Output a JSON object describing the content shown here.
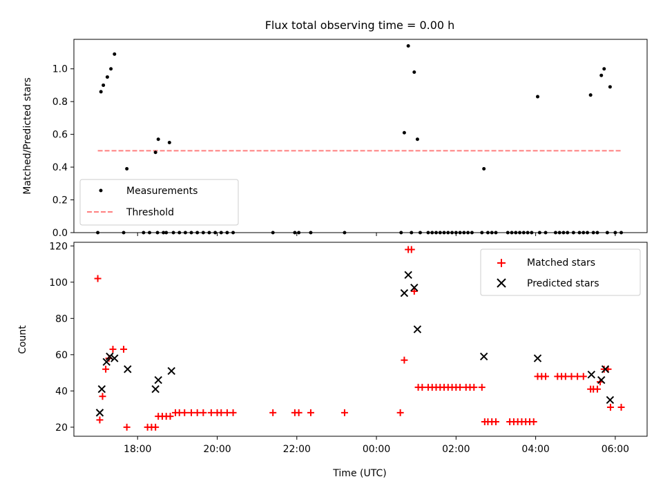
{
  "chart_data": [
    {
      "type": "scatter",
      "title": "Flux total observing time = 0.00 h",
      "xlabel": "",
      "ylabel": "Matched/Predicted stars",
      "x_unit": "hours since 00:00 UTC (negative = previous day)",
      "xlim": [
        -7.6,
        6.8
      ],
      "ylim": [
        0.0,
        1.18
      ],
      "yticks": [
        0.0,
        0.2,
        0.4,
        0.6,
        0.8,
        1.0
      ],
      "ytick_labels": [
        "0.0",
        "0.2",
        "0.4",
        "0.6",
        "0.8",
        "1.0"
      ],
      "legend": {
        "position": "lower-left",
        "items": [
          "Measurements",
          "Threshold"
        ]
      },
      "series": [
        {
          "name": "Measurements",
          "color": "#000000",
          "marker": "dot",
          "points": [
            [
              -7.0,
              0.0
            ],
            [
              -6.92,
              0.86
            ],
            [
              -6.86,
              0.9
            ],
            [
              -6.76,
              0.95
            ],
            [
              -6.67,
              1.0
            ],
            [
              -6.58,
              1.09
            ],
            [
              -6.35,
              0.0
            ],
            [
              -6.27,
              0.39
            ],
            [
              -5.55,
              0.49
            ],
            [
              -5.48,
              0.57
            ],
            [
              -5.2,
              0.55
            ],
            [
              -5.85,
              0.0
            ],
            [
              -5.7,
              0.0
            ],
            [
              -5.5,
              0.0
            ],
            [
              -5.35,
              0.0
            ],
            [
              -5.28,
              0.0
            ],
            [
              -5.1,
              0.0
            ],
            [
              -4.95,
              0.0
            ],
            [
              -4.8,
              0.0
            ],
            [
              -4.65,
              0.0
            ],
            [
              -4.5,
              0.0
            ],
            [
              -4.35,
              0.0
            ],
            [
              -4.2,
              0.0
            ],
            [
              -4.05,
              0.0
            ],
            [
              -3.9,
              0.0
            ],
            [
              -3.75,
              0.0
            ],
            [
              -3.6,
              0.0
            ],
            [
              -2.6,
              0.0
            ],
            [
              -2.05,
              0.0
            ],
            [
              -1.95,
              0.0
            ],
            [
              -1.65,
              0.0
            ],
            [
              -0.8,
              0.0
            ],
            [
              0.62,
              0.0
            ],
            [
              0.7,
              0.61
            ],
            [
              0.8,
              1.14
            ],
            [
              0.88,
              0.0
            ],
            [
              0.95,
              0.98
            ],
            [
              1.03,
              0.57
            ],
            [
              1.1,
              0.0
            ],
            [
              1.3,
              0.0
            ],
            [
              1.4,
              0.0
            ],
            [
              1.5,
              0.0
            ],
            [
              1.6,
              0.0
            ],
            [
              1.7,
              0.0
            ],
            [
              1.8,
              0.0
            ],
            [
              1.9,
              0.0
            ],
            [
              2.0,
              0.0
            ],
            [
              2.1,
              0.0
            ],
            [
              2.2,
              0.0
            ],
            [
              2.3,
              0.0
            ],
            [
              2.4,
              0.0
            ],
            [
              2.7,
              0.39
            ],
            [
              2.65,
              0.0
            ],
            [
              2.8,
              0.0
            ],
            [
              2.9,
              0.0
            ],
            [
              3.0,
              0.0
            ],
            [
              3.3,
              0.0
            ],
            [
              3.4,
              0.0
            ],
            [
              3.5,
              0.0
            ],
            [
              3.6,
              0.0
            ],
            [
              3.7,
              0.0
            ],
            [
              3.8,
              0.0
            ],
            [
              3.9,
              0.0
            ],
            [
              4.05,
              0.83
            ],
            [
              4.1,
              0.0
            ],
            [
              4.25,
              0.0
            ],
            [
              4.5,
              0.0
            ],
            [
              4.6,
              0.0
            ],
            [
              4.7,
              0.0
            ],
            [
              4.8,
              0.0
            ],
            [
              4.95,
              0.0
            ],
            [
              5.1,
              0.0
            ],
            [
              5.2,
              0.0
            ],
            [
              5.3,
              0.0
            ],
            [
              5.38,
              0.84
            ],
            [
              5.45,
              0.0
            ],
            [
              5.55,
              0.0
            ],
            [
              5.65,
              0.96
            ],
            [
              5.72,
              1.0
            ],
            [
              5.8,
              0.0
            ],
            [
              5.87,
              0.89
            ],
            [
              6.0,
              0.0
            ],
            [
              6.15,
              0.0
            ]
          ]
        },
        {
          "name": "Threshold",
          "color": "#ff7f7f",
          "style": "dashed",
          "x": [
            -7.0,
            6.15
          ],
          "y": [
            0.5,
            0.5
          ]
        }
      ]
    },
    {
      "type": "scatter",
      "title": "",
      "xlabel": "Time (UTC)",
      "ylabel": "Count",
      "x_unit": "hours since 00:00 UTC (negative = previous day)",
      "xlim": [
        -7.6,
        6.8
      ],
      "ylim": [
        15,
        122
      ],
      "yticks": [
        20,
        40,
        60,
        80,
        100,
        120
      ],
      "ytick_labels": [
        "20",
        "40",
        "60",
        "80",
        "100",
        "120"
      ],
      "xticks": [
        -6,
        -4,
        -2,
        0,
        2,
        4,
        6
      ],
      "xtick_labels": [
        "18:00",
        "20:00",
        "22:00",
        "00:00",
        "02:00",
        "04:00",
        "06:00"
      ],
      "legend": {
        "position": "top-right",
        "items": [
          "Matched stars",
          "Predicted stars"
        ]
      },
      "series": [
        {
          "name": "Matched stars",
          "color": "#ff0000",
          "marker": "plus",
          "points": [
            [
              -7.0,
              102
            ],
            [
              -6.95,
              24
            ],
            [
              -6.88,
              37
            ],
            [
              -6.8,
              52
            ],
            [
              -6.72,
              58
            ],
            [
              -6.62,
              63
            ],
            [
              -6.35,
              63
            ],
            [
              -6.27,
              20
            ],
            [
              -5.75,
              20
            ],
            [
              -5.65,
              20
            ],
            [
              -5.55,
              20
            ],
            [
              -5.48,
              26
            ],
            [
              -5.38,
              26
            ],
            [
              -5.28,
              26
            ],
            [
              -5.18,
              26
            ],
            [
              -5.05,
              28
            ],
            [
              -4.95,
              28
            ],
            [
              -4.82,
              28
            ],
            [
              -4.65,
              28
            ],
            [
              -4.5,
              28
            ],
            [
              -4.35,
              28
            ],
            [
              -4.15,
              28
            ],
            [
              -4.0,
              28
            ],
            [
              -3.9,
              28
            ],
            [
              -3.75,
              28
            ],
            [
              -3.6,
              28
            ],
            [
              -2.6,
              28
            ],
            [
              -2.05,
              28
            ],
            [
              -1.95,
              28
            ],
            [
              -1.65,
              28
            ],
            [
              -0.8,
              28
            ],
            [
              0.6,
              28
            ],
            [
              0.7,
              57
            ],
            [
              0.8,
              118
            ],
            [
              0.88,
              118
            ],
            [
              0.95,
              95
            ],
            [
              1.05,
              42
            ],
            [
              1.15,
              42
            ],
            [
              1.3,
              42
            ],
            [
              1.4,
              42
            ],
            [
              1.5,
              42
            ],
            [
              1.6,
              42
            ],
            [
              1.7,
              42
            ],
            [
              1.8,
              42
            ],
            [
              1.9,
              42
            ],
            [
              2.0,
              42
            ],
            [
              2.1,
              42
            ],
            [
              2.25,
              42
            ],
            [
              2.35,
              42
            ],
            [
              2.45,
              42
            ],
            [
              2.65,
              42
            ],
            [
              2.72,
              23
            ],
            [
              2.8,
              23
            ],
            [
              2.9,
              23
            ],
            [
              3.0,
              23
            ],
            [
              3.35,
              23
            ],
            [
              3.45,
              23
            ],
            [
              3.55,
              23
            ],
            [
              3.65,
              23
            ],
            [
              3.75,
              23
            ],
            [
              3.85,
              23
            ],
            [
              3.95,
              23
            ],
            [
              4.05,
              48
            ],
            [
              4.15,
              48
            ],
            [
              4.25,
              48
            ],
            [
              4.55,
              48
            ],
            [
              4.65,
              48
            ],
            [
              4.75,
              48
            ],
            [
              4.9,
              48
            ],
            [
              5.05,
              48
            ],
            [
              5.2,
              48
            ],
            [
              5.38,
              41
            ],
            [
              5.45,
              41
            ],
            [
              5.55,
              41
            ],
            [
              5.62,
              45
            ],
            [
              5.72,
              52
            ],
            [
              5.82,
              52
            ],
            [
              5.88,
              31
            ],
            [
              6.15,
              31
            ]
          ]
        },
        {
          "name": "Predicted stars",
          "color": "#000000",
          "marker": "x",
          "points": [
            [
              -6.95,
              28
            ],
            [
              -6.9,
              41
            ],
            [
              -6.78,
              56
            ],
            [
              -6.7,
              59
            ],
            [
              -6.58,
              58
            ],
            [
              -6.25,
              52
            ],
            [
              -5.55,
              41
            ],
            [
              -5.48,
              46
            ],
            [
              -5.15,
              51
            ],
            [
              0.7,
              94
            ],
            [
              0.8,
              104
            ],
            [
              0.95,
              97
            ],
            [
              1.03,
              74
            ],
            [
              2.7,
              59
            ],
            [
              4.05,
              58
            ],
            [
              5.4,
              49
            ],
            [
              5.65,
              46
            ],
            [
              5.75,
              52
            ],
            [
              5.87,
              35
            ]
          ]
        }
      ]
    }
  ]
}
